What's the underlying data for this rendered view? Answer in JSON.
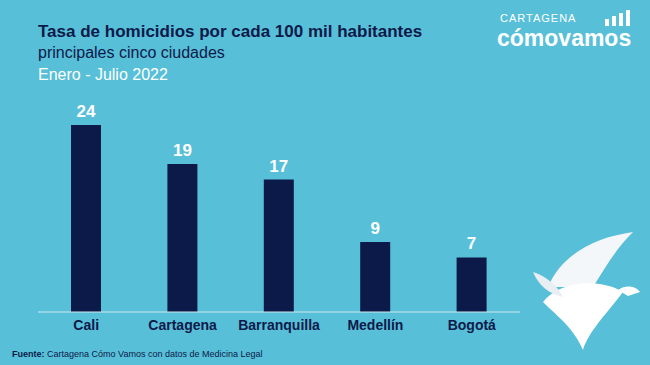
{
  "chart_data": {
    "type": "bar",
    "title": "Tasa de homicidios por cada 100 mil habitantes",
    "subtitle": "principales cinco ciudades",
    "annotations": [
      "Enero - Julio 2022"
    ],
    "categories": [
      "Cali",
      "Cartagena",
      "Barranquilla",
      "Medellín",
      "Bogotá"
    ],
    "values": [
      24,
      19,
      17,
      9,
      7
    ],
    "color": "#0c1a4a",
    "ylim": [
      0,
      24
    ],
    "grid": false,
    "data_labels": true,
    "tick_labels": "x"
  },
  "source": {
    "label": "Fuente:",
    "text": "Cartagena Cómo Vamos con datos de Medicina Legal"
  },
  "logo": {
    "top": "CARTAGENA",
    "main": "cómovamos"
  }
}
